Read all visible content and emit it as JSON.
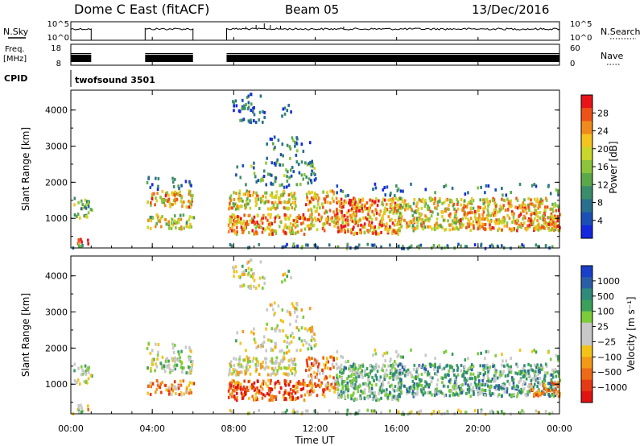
{
  "header": {
    "station": "Dome C East (fitACF)",
    "beam": "Beam 05",
    "date": "13/Dec/2016"
  },
  "labels": {
    "nsky": "N.Sky",
    "nsearch": "N.Search",
    "freq_line1": "Freq.",
    "freq_line2": "[MHz]",
    "nave": "Nave",
    "cpid": "CPID",
    "cpid_value": "twofsound 3501",
    "nsky_ticks": [
      "10^5",
      "10^0"
    ],
    "nsearch_ticks": [
      "10^5",
      "10^0"
    ],
    "freq_ticks": [
      "18",
      "8"
    ],
    "nave_ticks": [
      "60",
      "0"
    ]
  },
  "chart_data": [
    {
      "type": "heatmap",
      "name": "power",
      "ylabel": "Slant Range [km]",
      "colorbar_label": "Power [dB]",
      "colorbar_ticks": [
        "28",
        "24",
        "20",
        "16",
        "12",
        "8",
        "4"
      ],
      "colorbar_colors": [
        "#e8141a",
        "#ee5218",
        "#f08a1c",
        "#f3c41f",
        "#c9d62a",
        "#8cc43c",
        "#5aa84a",
        "#3a8c6a",
        "#2a6f8e",
        "#1b4fb6",
        "#1428e0"
      ],
      "yticks": [
        1000,
        2000,
        3000,
        4000
      ],
      "yticklabels": [
        "1000",
        "2000",
        "3000",
        "4000"
      ],
      "ylim": [
        180,
        4550
      ],
      "xlim": [
        0,
        24
      ]
    },
    {
      "type": "heatmap",
      "name": "velocity",
      "ylabel": "Slant Range [km]",
      "colorbar_label": "Velocity [m s⁻¹]",
      "colorbar_ticks": [
        "1000",
        "500",
        "100",
        "25",
        "−25",
        "−100",
        "−500",
        "−1000"
      ],
      "colorbar_colors": [
        "#1a3fc8",
        "#2a5fa8",
        "#2f8a7a",
        "#3aa05a",
        "#7ccc3a",
        "#c8c8c8",
        "#c8c8c8",
        "#f2c41a",
        "#f29a18",
        "#ee6a16",
        "#e63a14",
        "#e01212"
      ],
      "yticks": [
        1000,
        2000,
        3000,
        4000
      ],
      "yticklabels": [
        "1000",
        "2000",
        "3000",
        "4000"
      ],
      "ylim": [
        180,
        4550
      ],
      "xlim": [
        0,
        24
      ]
    }
  ],
  "xaxis": {
    "ticks": [
      0,
      4,
      8,
      12,
      16,
      20,
      24
    ],
    "ticklabels": [
      "00:00",
      "04:00",
      "08:00",
      "12:00",
      "16:00",
      "20:00",
      "00:00"
    ],
    "label": "Time UT"
  },
  "data_windows": [
    [
      0.0,
      1.0
    ],
    [
      3.65,
      6.0
    ],
    [
      7.65,
      24.0
    ]
  ]
}
